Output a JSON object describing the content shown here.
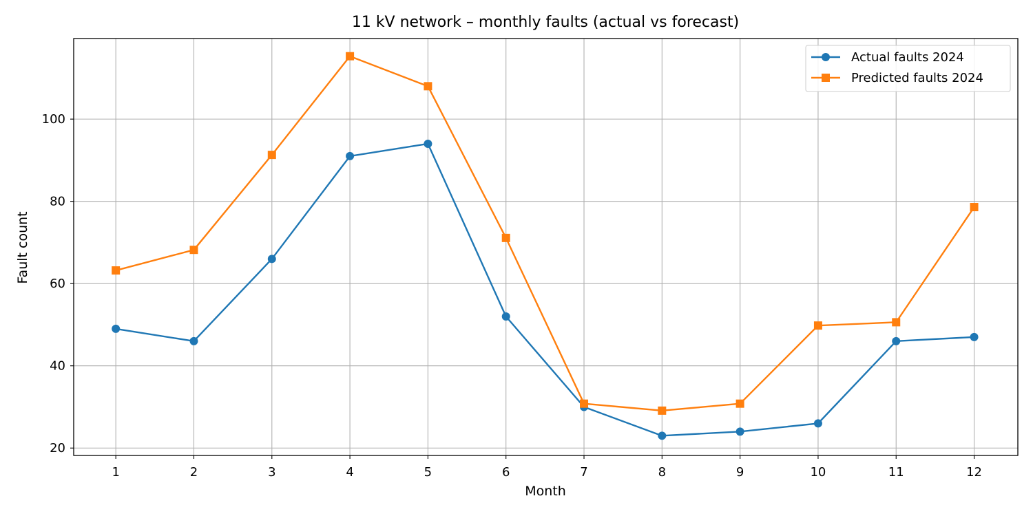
{
  "chart_data": {
    "type": "line",
    "title": "11 kV network – monthly faults (actual vs forecast)",
    "xlabel": "Month",
    "ylabel": "Fault count",
    "x": [
      1,
      2,
      3,
      4,
      5,
      6,
      7,
      8,
      9,
      10,
      11,
      12
    ],
    "xticks": [
      "1",
      "2",
      "3",
      "4",
      "5",
      "6",
      "7",
      "8",
      "9",
      "10",
      "11",
      "12"
    ],
    "yticks": [
      20,
      40,
      60,
      80,
      100
    ],
    "xlim": [
      0.46,
      12.56
    ],
    "ylim": [
      18.2,
      119.6
    ],
    "grid": true,
    "legend_position": "top-right",
    "series": [
      {
        "name": "Actual faults 2024",
        "color": "#1f77b4",
        "marker": "circle",
        "values": [
          49,
          46,
          66,
          91,
          94,
          52,
          30,
          23,
          24,
          26,
          46,
          47
        ]
      },
      {
        "name": "Predicted faults 2024",
        "color": "#ff7f0e",
        "marker": "square",
        "values": [
          63.2,
          68.2,
          91.3,
          115.3,
          108.0,
          71.1,
          30.8,
          29.1,
          30.8,
          49.8,
          50.6,
          78.6
        ]
      }
    ]
  }
}
